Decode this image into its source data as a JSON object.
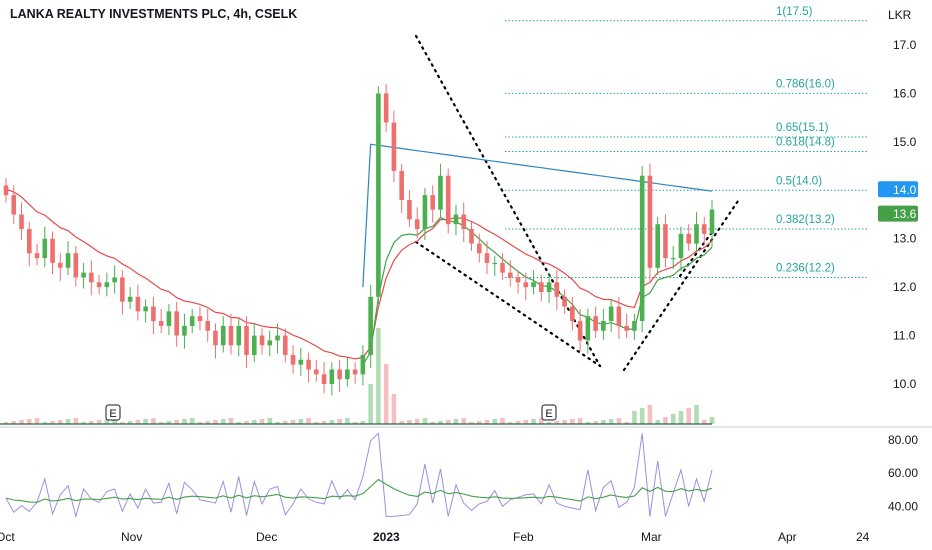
{
  "header": {
    "title": "LANKA REALTY INVESTMENTS PLC, 4h, CSELK",
    "currency": "LKR"
  },
  "colors": {
    "up": "#4caf50",
    "down": "#ef6f6f",
    "ema": "#e84a4a",
    "vwap": "#2e86c1",
    "ma_green": "#43a047",
    "rsi": "#9c8fe0",
    "fib": "#26a69a",
    "last_price_badge": "#2196f3",
    "last_close_badge": "#43a047"
  },
  "chart_data": {
    "type": "candlestick",
    "yaxis": {
      "unit": "LKR",
      "ticks": [
        17.0,
        16.0,
        15.0,
        14.0,
        13.0,
        12.0,
        11.0,
        10.0
      ],
      "tick_labels": [
        "17.0",
        "16.0",
        "15.0",
        "14.0",
        "13.0",
        "12.0",
        "11.0",
        "10.0"
      ],
      "range": [
        9.3,
        17.9
      ]
    },
    "xaxis": {
      "labels": [
        "Oct",
        "Nov",
        "Dec",
        "2023",
        "Feb",
        "Mar",
        "Apr",
        "24"
      ],
      "bold_labels": [
        "2023"
      ]
    },
    "price_badges": [
      {
        "value": 14.0,
        "label": "14.0",
        "kind": "last_price"
      },
      {
        "value": 13.6,
        "label": "13.6",
        "kind": "last_close"
      }
    ],
    "fibonacci_levels": [
      {
        "ratio": "1",
        "price": 17.5,
        "label": "1(17.5)"
      },
      {
        "ratio": "0.786",
        "price": 16.0,
        "label": "0.786(16.0)"
      },
      {
        "ratio": "0.65",
        "price": 15.1,
        "label": "0.65(15.1)"
      },
      {
        "ratio": "0.618",
        "price": 14.8,
        "label": "0.618(14.8)"
      },
      {
        "ratio": "0.5",
        "price": 14.0,
        "label": "0.5(14.0)"
      },
      {
        "ratio": "0.382",
        "price": 13.2,
        "label": "0.382(13.2)"
      },
      {
        "ratio": "0.236",
        "price": 12.2,
        "label": "0.236(12.2)"
      }
    ],
    "earnings_markers": [
      {
        "label": "E"
      },
      {
        "label": "E"
      }
    ],
    "candle_closes_approx": [
      13.9,
      13.5,
      13.2,
      12.7,
      12.6,
      13.0,
      12.5,
      12.4,
      12.7,
      12.2,
      12.3,
      12.1,
      12.0,
      12.1,
      12.2,
      11.7,
      11.8,
      11.5,
      11.6,
      11.3,
      11.2,
      11.5,
      11.0,
      11.2,
      11.4,
      11.3,
      11.1,
      10.8,
      11.2,
      10.8,
      11.2,
      10.6,
      11.0,
      10.8,
      10.9,
      11.0,
      10.6,
      10.4,
      10.5,
      10.3,
      10.2,
      10.0,
      10.3,
      10.1,
      10.3,
      10.2,
      10.6,
      11.8,
      16.0,
      15.4,
      14.4,
      13.8,
      13.4,
      13.2,
      13.9,
      13.6,
      14.3,
      13.3,
      13.5,
      13.2,
      12.9,
      12.7,
      12.5,
      12.5,
      12.3,
      12.2,
      12.1,
      12.0,
      12.1,
      11.9,
      12.1,
      11.8,
      11.6,
      11.3,
      10.9,
      11.4,
      11.1,
      11.3,
      11.6,
      11.2,
      11.1,
      11.3,
      14.3,
      12.4,
      13.3,
      12.6,
      12.6,
      13.1,
      12.9,
      13.3,
      13.1,
      13.6
    ],
    "rsi": {
      "ticks": [
        80.0,
        60.0,
        40.0
      ],
      "tick_labels": [
        "80.00",
        "60.00",
        "40.00"
      ],
      "range": [
        30,
        90
      ]
    }
  }
}
